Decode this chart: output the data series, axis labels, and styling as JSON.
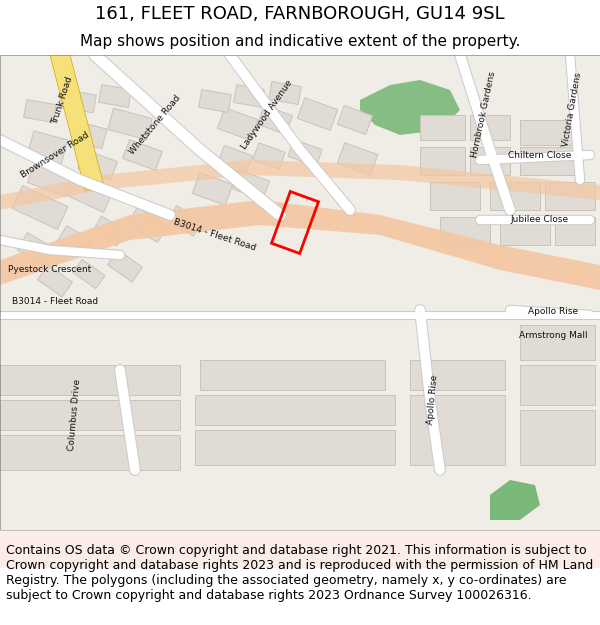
{
  "title_line1": "161, FLEET ROAD, FARNBOROUGH, GU14 9SL",
  "title_line2": "Map shows position and indicative extent of the property.",
  "footer_text": "Contains OS data © Crown copyright and database right 2021. This information is subject to Crown copyright and database rights 2023 and is reproduced with the permission of HM Land Registry. The polygons (including the associated geometry, namely x, y co-ordinates) are subject to Crown copyright and database rights 2023 Ordnance Survey 100026316.",
  "bg_color": "#f5f0eb",
  "map_bg": "#f0ece6",
  "road_major_color": "#f5c6a0",
  "road_major_outline": "#e8a882",
  "road_minor_color": "#ffffff",
  "road_minor_outline": "#cccccc",
  "building_color": "#e0dbd4",
  "building_outline": "#c8c3bc",
  "green_color": "#7ab87a",
  "yellow_road_color": "#f5e07a",
  "plot_color": "#ff0000",
  "header_bg": "#ffffff",
  "footer_bg": "#ffffff",
  "border_color": "#000000",
  "title_fontsize": 13,
  "subtitle_fontsize": 11,
  "footer_fontsize": 9
}
